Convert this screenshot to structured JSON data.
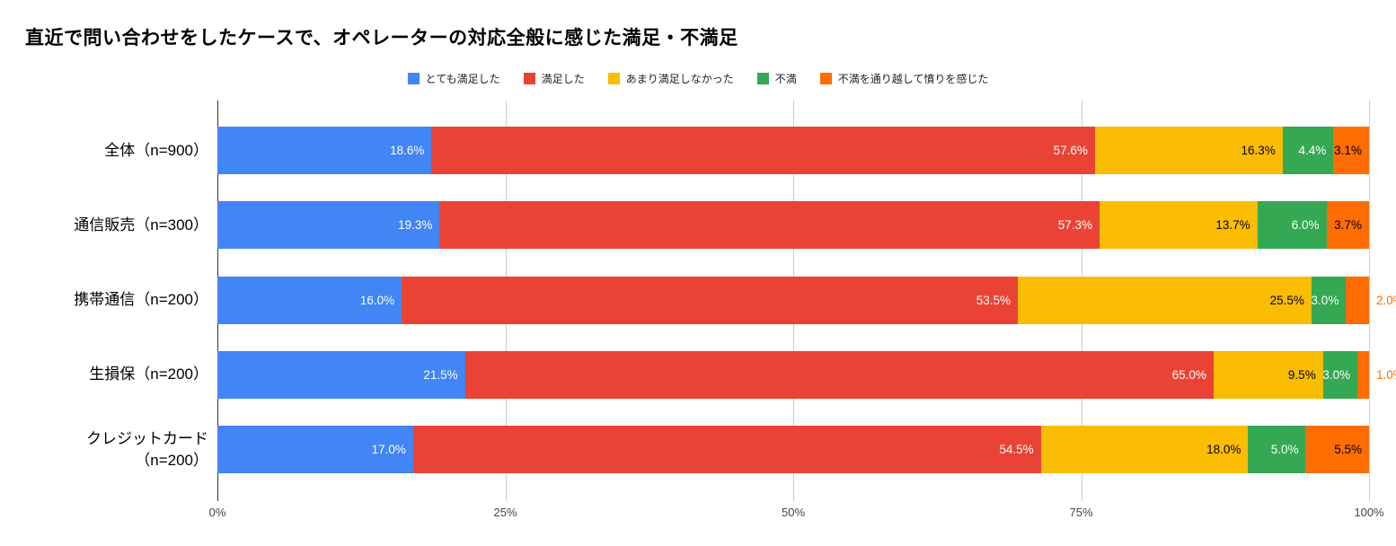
{
  "chart_data": {
    "type": "bar",
    "orientation": "horizontal-stacked",
    "title": "直近で問い合わせをしたケースで、オペレーターの対応全般に感じた満足・不満足",
    "categories": [
      "全体（n=900）",
      "通信販売（n=300）",
      "携帯通信（n=200）",
      "生損保（n=200）",
      "クレジットカード（n=200）"
    ],
    "series": [
      {
        "name": "とても満足した",
        "color": "#4285F4",
        "label_color": "#ffffff",
        "values": [
          18.6,
          19.3,
          16.0,
          21.5,
          17.0
        ]
      },
      {
        "name": "満足した",
        "color": "#EA4335",
        "label_color": "#ffffff",
        "values": [
          57.6,
          57.3,
          53.5,
          65.0,
          54.5
        ]
      },
      {
        "name": "あまり満足しなかった",
        "color": "#FBBC04",
        "label_color": "#000000",
        "values": [
          16.3,
          13.7,
          25.5,
          9.5,
          18.0
        ]
      },
      {
        "name": "不満",
        "color": "#34A853",
        "label_color": "#ffffff",
        "values": [
          4.4,
          6.0,
          3.0,
          3.0,
          5.0
        ]
      },
      {
        "name": "不満を通り越して憤りを感じた",
        "color": "#FF6D00",
        "label_color": "#000000",
        "values": [
          3.1,
          3.7,
          2.0,
          1.0,
          5.5
        ]
      }
    ],
    "value_suffix": "%",
    "xlim": [
      0,
      100
    ],
    "x_ticks": [
      "0%",
      "25%",
      "50%",
      "75%",
      "100%"
    ],
    "x_tick_values": [
      0,
      25,
      50,
      75,
      100
    ],
    "legend_position": "top",
    "grid": true,
    "gridline_color": "#cccccc",
    "baseline_color": "#333333",
    "axis_text_color": "#444444"
  }
}
